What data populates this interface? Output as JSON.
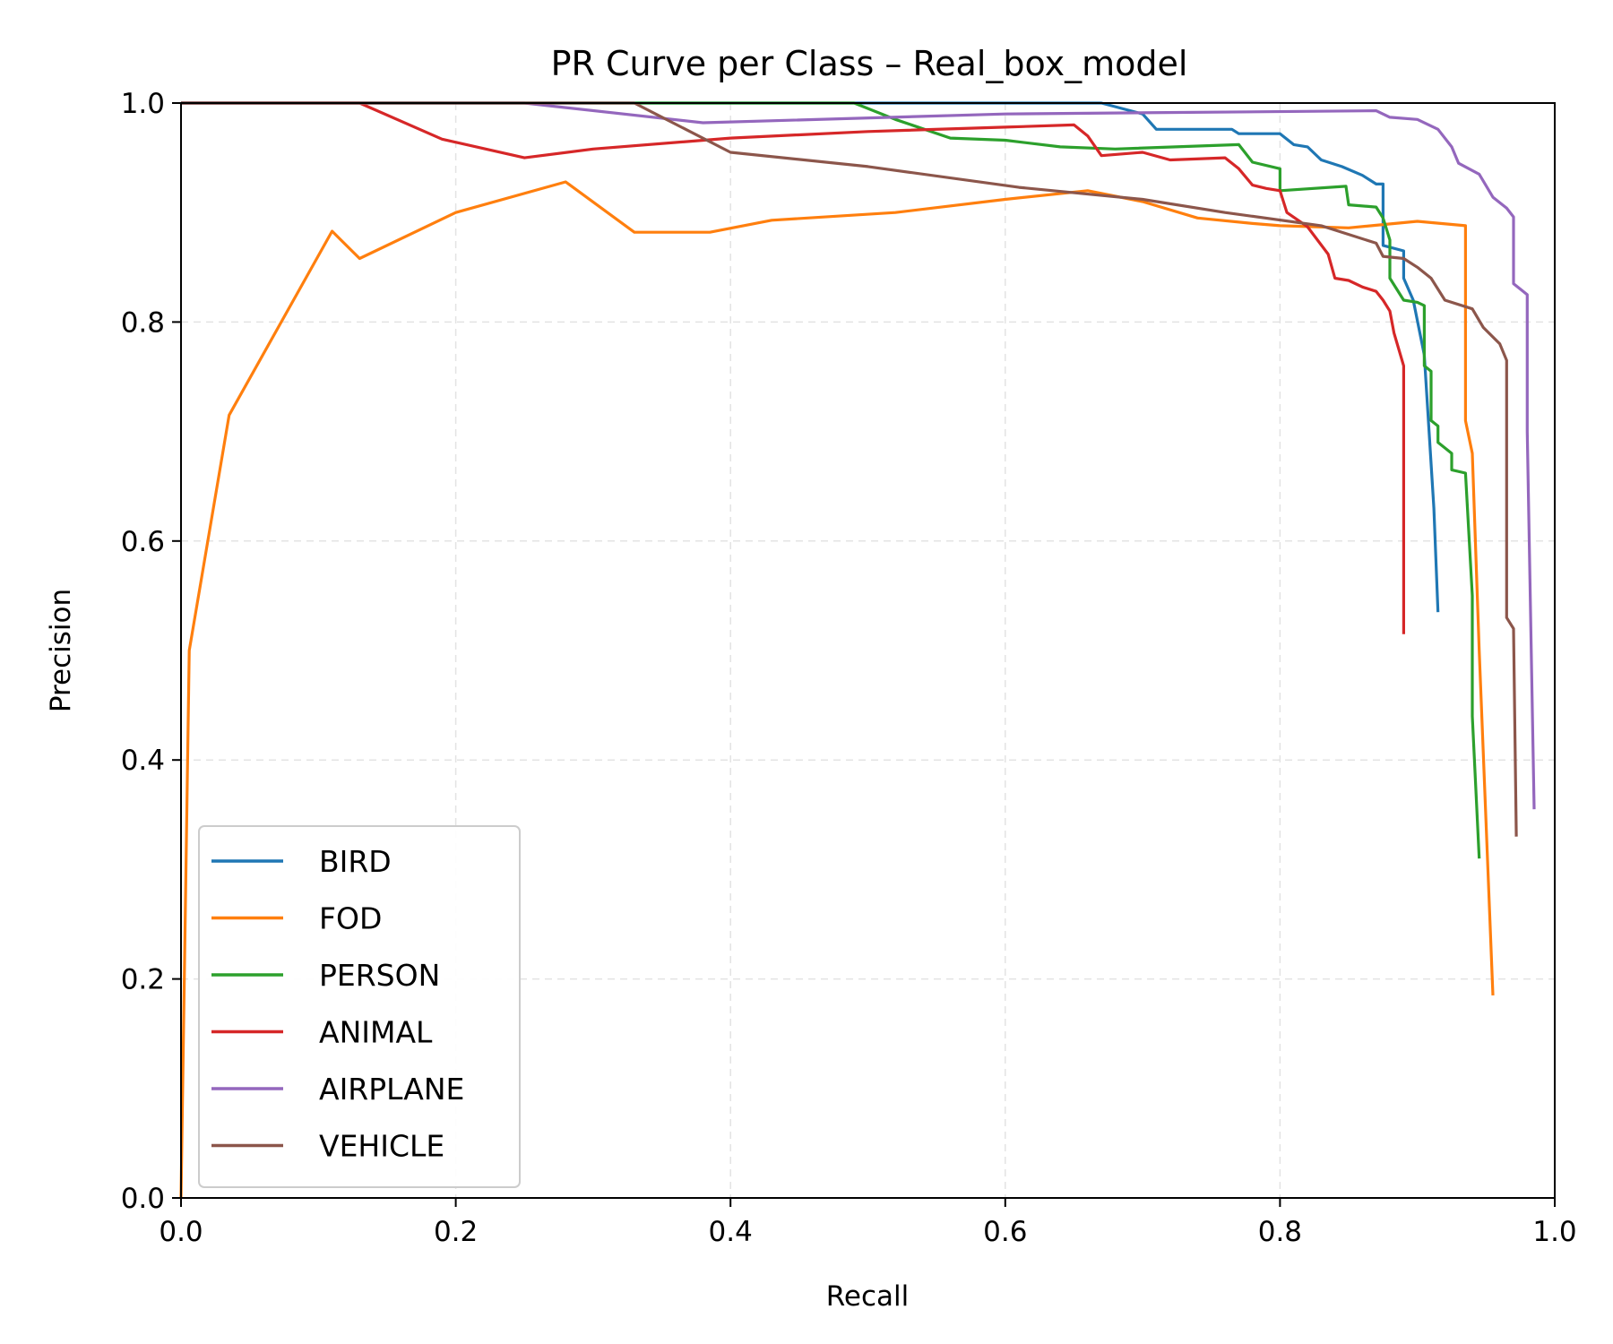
{
  "chart_data": {
    "type": "line",
    "title": "PR Curve per Class – Real_box_model",
    "xlabel": "Recall",
    "ylabel": "Precision",
    "xlim": [
      0.0,
      1.0
    ],
    "ylim": [
      0.0,
      1.0
    ],
    "xticks": [
      "0.0",
      "0.2",
      "0.4",
      "0.6",
      "0.8",
      "1.0"
    ],
    "yticks": [
      "0.0",
      "0.2",
      "0.4",
      "0.6",
      "0.8",
      "1.0"
    ],
    "grid": true,
    "legend_position": "lower-left",
    "series": [
      {
        "name": "BIRD",
        "color": "#1f77b4",
        "points": [
          [
            0.0,
            1.0
          ],
          [
            0.67,
            1.0
          ],
          [
            0.7,
            0.99
          ],
          [
            0.71,
            0.976
          ],
          [
            0.765,
            0.976
          ],
          [
            0.77,
            0.972
          ],
          [
            0.8,
            0.972
          ],
          [
            0.81,
            0.962
          ],
          [
            0.82,
            0.96
          ],
          [
            0.83,
            0.948
          ],
          [
            0.845,
            0.942
          ],
          [
            0.86,
            0.934
          ],
          [
            0.87,
            0.926
          ],
          [
            0.875,
            0.926
          ],
          [
            0.875,
            0.87
          ],
          [
            0.89,
            0.865
          ],
          [
            0.89,
            0.84
          ],
          [
            0.897,
            0.82
          ],
          [
            0.905,
            0.77
          ],
          [
            0.912,
            0.63
          ],
          [
            0.915,
            0.535
          ]
        ]
      },
      {
        "name": "FOD",
        "color": "#ff7f0e",
        "points": [
          [
            0.0,
            0.0
          ],
          [
            0.006,
            0.5
          ],
          [
            0.035,
            0.715
          ],
          [
            0.11,
            0.883
          ],
          [
            0.13,
            0.858
          ],
          [
            0.2,
            0.9
          ],
          [
            0.28,
            0.928
          ],
          [
            0.33,
            0.882
          ],
          [
            0.385,
            0.882
          ],
          [
            0.43,
            0.893
          ],
          [
            0.52,
            0.9
          ],
          [
            0.6,
            0.912
          ],
          [
            0.66,
            0.92
          ],
          [
            0.7,
            0.91
          ],
          [
            0.74,
            0.895
          ],
          [
            0.78,
            0.89
          ],
          [
            0.8,
            0.888
          ],
          [
            0.85,
            0.886
          ],
          [
            0.9,
            0.892
          ],
          [
            0.935,
            0.888
          ],
          [
            0.935,
            0.71
          ],
          [
            0.94,
            0.68
          ],
          [
            0.945,
            0.5
          ],
          [
            0.955,
            0.185
          ]
        ]
      },
      {
        "name": "PERSON",
        "color": "#2ca02c",
        "points": [
          [
            0.0,
            1.0
          ],
          [
            0.49,
            1.0
          ],
          [
            0.52,
            0.985
          ],
          [
            0.56,
            0.968
          ],
          [
            0.6,
            0.966
          ],
          [
            0.64,
            0.96
          ],
          [
            0.68,
            0.958
          ],
          [
            0.77,
            0.962
          ],
          [
            0.78,
            0.946
          ],
          [
            0.8,
            0.94
          ],
          [
            0.8,
            0.92
          ],
          [
            0.848,
            0.924
          ],
          [
            0.85,
            0.907
          ],
          [
            0.87,
            0.905
          ],
          [
            0.875,
            0.895
          ],
          [
            0.88,
            0.875
          ],
          [
            0.88,
            0.84
          ],
          [
            0.89,
            0.82
          ],
          [
            0.9,
            0.818
          ],
          [
            0.905,
            0.815
          ],
          [
            0.905,
            0.76
          ],
          [
            0.91,
            0.755
          ],
          [
            0.91,
            0.71
          ],
          [
            0.915,
            0.705
          ],
          [
            0.915,
            0.69
          ],
          [
            0.925,
            0.68
          ],
          [
            0.925,
            0.665
          ],
          [
            0.935,
            0.662
          ],
          [
            0.94,
            0.55
          ],
          [
            0.94,
            0.44
          ],
          [
            0.945,
            0.31
          ]
        ]
      },
      {
        "name": "ANIMAL",
        "color": "#d62728",
        "points": [
          [
            0.0,
            1.0
          ],
          [
            0.13,
            1.0
          ],
          [
            0.19,
            0.967
          ],
          [
            0.25,
            0.95
          ],
          [
            0.3,
            0.958
          ],
          [
            0.4,
            0.968
          ],
          [
            0.5,
            0.974
          ],
          [
            0.6,
            0.978
          ],
          [
            0.65,
            0.98
          ],
          [
            0.66,
            0.97
          ],
          [
            0.67,
            0.952
          ],
          [
            0.7,
            0.955
          ],
          [
            0.72,
            0.948
          ],
          [
            0.76,
            0.95
          ],
          [
            0.77,
            0.94
          ],
          [
            0.78,
            0.925
          ],
          [
            0.79,
            0.922
          ],
          [
            0.8,
            0.92
          ],
          [
            0.805,
            0.9
          ],
          [
            0.82,
            0.887
          ],
          [
            0.835,
            0.862
          ],
          [
            0.84,
            0.84
          ],
          [
            0.85,
            0.838
          ],
          [
            0.86,
            0.832
          ],
          [
            0.87,
            0.828
          ],
          [
            0.875,
            0.82
          ],
          [
            0.88,
            0.81
          ],
          [
            0.883,
            0.79
          ],
          [
            0.89,
            0.76
          ],
          [
            0.89,
            0.515
          ]
        ]
      },
      {
        "name": "AIRPLANE",
        "color": "#9467bd",
        "points": [
          [
            0.0,
            1.0
          ],
          [
            0.25,
            1.0
          ],
          [
            0.38,
            0.982
          ],
          [
            0.6,
            0.99
          ],
          [
            0.87,
            0.993
          ],
          [
            0.88,
            0.987
          ],
          [
            0.9,
            0.985
          ],
          [
            0.915,
            0.976
          ],
          [
            0.925,
            0.96
          ],
          [
            0.93,
            0.945
          ],
          [
            0.945,
            0.935
          ],
          [
            0.955,
            0.914
          ],
          [
            0.965,
            0.904
          ],
          [
            0.97,
            0.896
          ],
          [
            0.97,
            0.835
          ],
          [
            0.975,
            0.83
          ],
          [
            0.98,
            0.825
          ],
          [
            0.98,
            0.7
          ],
          [
            0.985,
            0.355
          ]
        ]
      },
      {
        "name": "VEHICLE",
        "color": "#8c564b",
        "points": [
          [
            0.0,
            1.0
          ],
          [
            0.33,
            1.0
          ],
          [
            0.4,
            0.955
          ],
          [
            0.5,
            0.942
          ],
          [
            0.61,
            0.923
          ],
          [
            0.7,
            0.912
          ],
          [
            0.76,
            0.9
          ],
          [
            0.83,
            0.888
          ],
          [
            0.87,
            0.872
          ],
          [
            0.875,
            0.86
          ],
          [
            0.89,
            0.858
          ],
          [
            0.9,
            0.85
          ],
          [
            0.91,
            0.84
          ],
          [
            0.92,
            0.82
          ],
          [
            0.94,
            0.812
          ],
          [
            0.948,
            0.795
          ],
          [
            0.96,
            0.78
          ],
          [
            0.965,
            0.765
          ],
          [
            0.965,
            0.53
          ],
          [
            0.97,
            0.52
          ],
          [
            0.972,
            0.33
          ]
        ]
      }
    ]
  }
}
